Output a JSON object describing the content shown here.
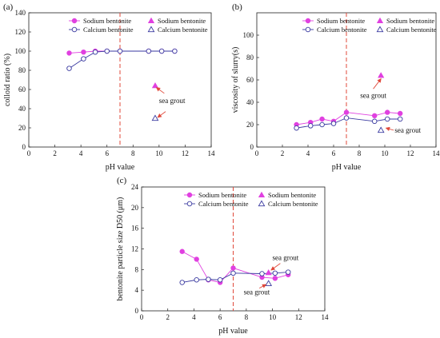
{
  "chart_data": [
    {
      "id": "a",
      "panel_label": "(a)",
      "type": "line",
      "xlabel": "pH value",
      "ylabel": "colloid ratio (%)",
      "xlim": [
        0,
        14
      ],
      "ylim": [
        0,
        140
      ],
      "xticks": [
        0,
        2,
        4,
        6,
        8,
        10,
        12,
        14
      ],
      "yticks": [
        0,
        20,
        40,
        60,
        80,
        100,
        120,
        140
      ],
      "vline_x": 7,
      "legend_position": "top-right",
      "series": [
        {
          "name": "Sodium bentonite",
          "color": "#e040e0",
          "marker": "filled-circle",
          "x": [
            3.1,
            4.2,
            5.1,
            6.0,
            7.0,
            9.2,
            10.2,
            11.2
          ],
          "y": [
            98,
            99,
            100,
            100,
            100,
            100,
            100,
            100
          ]
        },
        {
          "name": "Calcium bentonite",
          "color": "#3a3aa0",
          "marker": "open-circle",
          "x": [
            3.1,
            4.2,
            5.1,
            6.0,
            7.0,
            9.2,
            10.2,
            11.2
          ],
          "y": [
            82,
            92,
            99,
            100,
            100,
            100,
            100,
            100
          ]
        }
      ],
      "points": [
        {
          "name": "Sodium bentonite",
          "color": "#e040e0",
          "marker": "filled-triangle",
          "x": 9.7,
          "y": 64
        },
        {
          "name": "Calcium bentonite",
          "color": "#3a3aa0",
          "marker": "open-triangle",
          "x": 9.7,
          "y": 30
        }
      ],
      "annotations": [
        {
          "text": "sea grout",
          "x": 11.0,
          "y": 46,
          "arrows": [
            {
              "from": [
                10.4,
                56
              ],
              "to": [
                9.8,
                62
              ]
            },
            {
              "from": [
                10.5,
                37
              ],
              "to": [
                9.9,
                31
              ]
            }
          ]
        }
      ]
    },
    {
      "id": "b",
      "panel_label": "(b)",
      "type": "line",
      "xlabel": "pH value",
      "ylabel": "viscosity of slurry(s)",
      "xlim": [
        0,
        14
      ],
      "ylim": [
        0,
        120
      ],
      "xticks": [
        0,
        2,
        4,
        6,
        8,
        10,
        12,
        14
      ],
      "yticks": [
        0,
        20,
        40,
        60,
        80,
        100
      ],
      "vline_x": 7,
      "legend_position": "top-right",
      "series": [
        {
          "name": "Sodium bentonite",
          "color": "#e040e0",
          "marker": "filled-circle",
          "x": [
            3.1,
            4.2,
            5.1,
            6.0,
            7.0,
            9.2,
            10.2,
            11.2
          ],
          "y": [
            20,
            22,
            25,
            23,
            31,
            28,
            31,
            30
          ]
        },
        {
          "name": "Calcium bentonite",
          "color": "#3a3aa0",
          "marker": "open-circle",
          "x": [
            3.1,
            4.2,
            5.1,
            6.0,
            7.0,
            9.2,
            10.2,
            11.2
          ],
          "y": [
            17,
            19,
            20,
            21,
            26,
            23,
            25,
            25
          ]
        }
      ],
      "points": [
        {
          "name": "Sodium bentonite",
          "color": "#e040e0",
          "marker": "filled-triangle",
          "x": 9.7,
          "y": 64
        },
        {
          "name": "Calcium bentonite",
          "color": "#3a3aa0",
          "marker": "open-triangle",
          "x": 9.7,
          "y": 15
        }
      ],
      "annotations": [
        {
          "text": "sea grout",
          "x": 9.1,
          "y": 44,
          "arrows": [
            {
              "from": [
                9.1,
                52
              ],
              "to": [
                9.7,
                61
              ]
            }
          ]
        },
        {
          "text": "sea grout",
          "x": 11.8,
          "y": 13,
          "arrows": [
            {
              "from": [
                10.7,
                15
              ],
              "to": [
                10.1,
                17
              ]
            }
          ]
        }
      ]
    },
    {
      "id": "c",
      "panel_label": "(c)",
      "type": "line",
      "xlabel": "pH value",
      "ylabel": "bentonite particle size D50 (μm)",
      "xlim": [
        0,
        14
      ],
      "ylim": [
        0,
        24
      ],
      "xticks": [
        0,
        2,
        4,
        6,
        8,
        10,
        12,
        14
      ],
      "yticks": [
        0,
        4,
        8,
        12,
        16,
        20,
        24
      ],
      "vline_x": 7,
      "legend_position": "top-right",
      "series": [
        {
          "name": "Sodium bentonite",
          "color": "#e040e0",
          "marker": "filled-circle",
          "x": [
            3.1,
            4.2,
            5.1,
            6.0,
            7.0,
            9.2,
            10.2,
            11.2
          ],
          "y": [
            11.5,
            10.0,
            6.0,
            5.5,
            8.3,
            6.5,
            6.3,
            7.0
          ]
        },
        {
          "name": "Calcium bentonite",
          "color": "#3a3aa0",
          "marker": "open-circle",
          "x": [
            3.1,
            4.2,
            5.1,
            6.0,
            7.0,
            9.2,
            10.2,
            11.2
          ],
          "y": [
            5.5,
            6.0,
            6.1,
            6.0,
            7.3,
            7.2,
            7.3,
            7.5
          ]
        }
      ],
      "points": [
        {
          "name": "Sodium bentonite",
          "color": "#e040e0",
          "marker": "filled-triangle",
          "x": 9.7,
          "y": 7.4
        },
        {
          "name": "Calcium bentonite",
          "color": "#3a3aa0",
          "marker": "open-triangle",
          "x": 9.7,
          "y": 5.3
        }
      ],
      "annotations": [
        {
          "text": "sea grout",
          "x": 11.0,
          "y": 9.8,
          "arrows": [
            {
              "from": [
                10.6,
                9.2
              ],
              "to": [
                9.9,
                7.9
              ]
            }
          ]
        },
        {
          "text": "sea grout",
          "x": 8.8,
          "y": 3.2,
          "arrows": [
            {
              "from": [
                9.0,
                4.4
              ],
              "to": [
                9.5,
                5.1
              ]
            }
          ]
        }
      ]
    }
  ]
}
